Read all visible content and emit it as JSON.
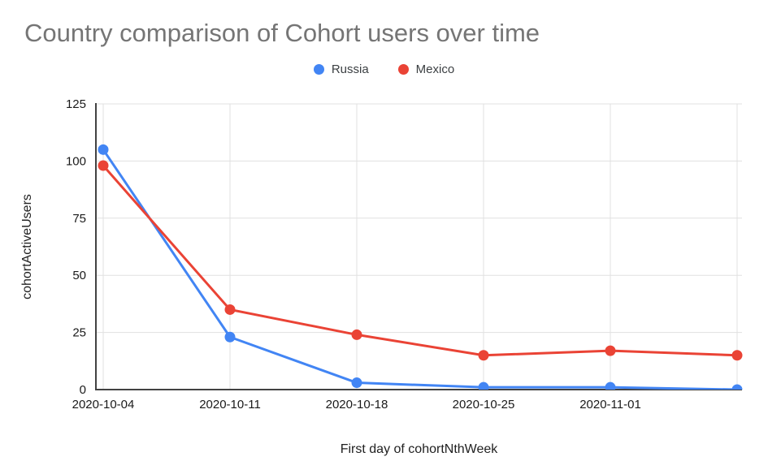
{
  "chart": {
    "background": "#ffffff",
    "title_color": "#757575",
    "gridline_color": "#e0e0e0",
    "axis_line_color": "#424242"
  },
  "chart_data": {
    "type": "line",
    "title": "Country comparison of Cohort users over time",
    "xlabel": "First day of cohortNthWeek",
    "ylabel": "cohortActiveUsers",
    "x_labels": [
      "2020-10-04",
      "2020-10-11",
      "2020-10-18",
      "2020-10-25",
      "2020-11-01",
      ""
    ],
    "y_ticks": [
      0,
      25,
      50,
      75,
      100,
      125
    ],
    "ylim": [
      0,
      125
    ],
    "grid": true,
    "legend_position": "top",
    "series": [
      {
        "name": "Russia",
        "color": "#4285F4",
        "values": [
          105,
          23,
          3,
          1,
          1,
          0
        ]
      },
      {
        "name": "Mexico",
        "color": "#EA4335",
        "values": [
          98,
          35,
          24,
          15,
          17,
          15
        ]
      }
    ]
  }
}
